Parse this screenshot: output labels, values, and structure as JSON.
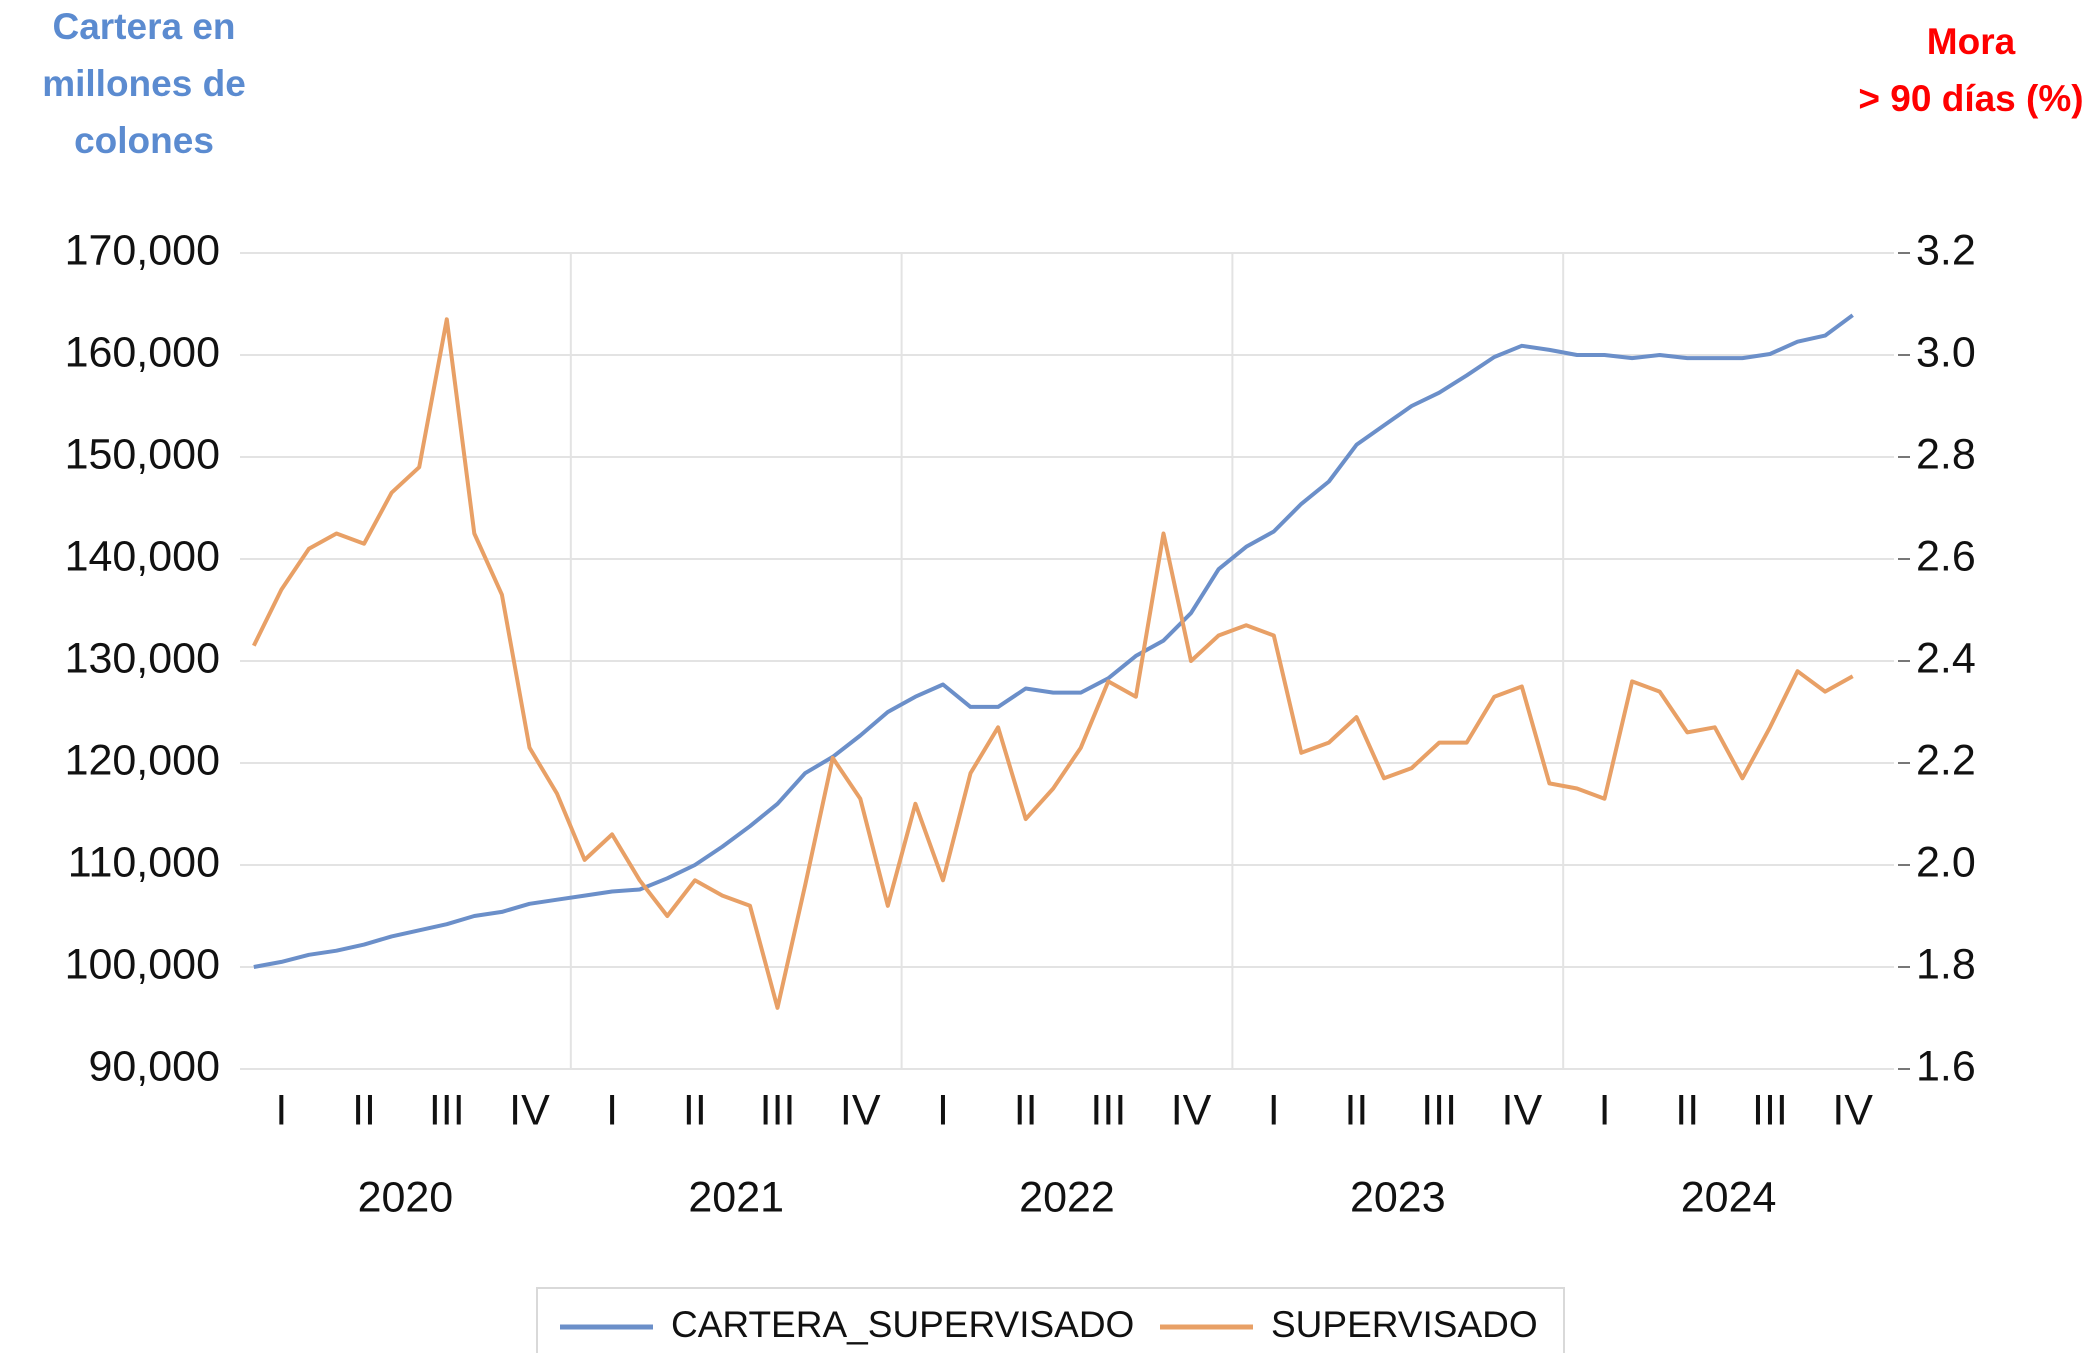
{
  "chart_data": {
    "type": "line",
    "y_axis_title": [
      "Cartera en",
      "millones de",
      "colones"
    ],
    "y2_axis_title": [
      "Mora",
      "> 90 días (%)"
    ],
    "categories": [
      null,
      null,
      null,
      null,
      null,
      null,
      null,
      null,
      null,
      null,
      null,
      null,
      null,
      null,
      null,
      null,
      null,
      null,
      null,
      null,
      null,
      null,
      null,
      null,
      null,
      null,
      null,
      null,
      null,
      null,
      null,
      null,
      null,
      null,
      null,
      null,
      null,
      null,
      null,
      null,
      null,
      null,
      null,
      null,
      null,
      null,
      null,
      null,
      null,
      null,
      null,
      null,
      null,
      null,
      null,
      null,
      null,
      null,
      null,
      null
    ],
    "quarter_labels": [
      "I",
      "II",
      "III",
      "IV",
      "I",
      "II",
      "III",
      "IV",
      "I",
      "II",
      "III",
      "IV",
      "I",
      "II",
      "III",
      "IV",
      "I",
      "II",
      "III",
      "IV"
    ],
    "year_labels": [
      "2020",
      "2021",
      "2022",
      "2023",
      "2024"
    ],
    "series": [
      {
        "name": "CARTERA_SUPERVISADO",
        "color": "#6b8fc9",
        "axis": "y",
        "values": [
          100000,
          100500,
          101200,
          101600,
          102200,
          103000,
          103600,
          104200,
          105000,
          105400,
          106200,
          106600,
          107000,
          107400,
          107600,
          108700,
          110000,
          111800,
          113800,
          116000,
          119000,
          120600,
          122700,
          125000,
          126500,
          127700,
          125500,
          125500,
          127300,
          126900,
          126900,
          128300,
          130500,
          132000,
          134700,
          139000,
          141200,
          142700,
          145400,
          147600,
          151200,
          153100,
          155000,
          156300,
          158000,
          159800,
          160900,
          160500,
          160000,
          160000,
          159700,
          160000,
          159700,
          159700,
          159700,
          160100,
          161300,
          161900,
          163900,
          null
        ]
      },
      {
        "name": "SUPERVISADO",
        "color": "#e8a066",
        "axis": "y2",
        "values": [
          2.43,
          2.54,
          2.62,
          2.65,
          2.63,
          2.73,
          2.78,
          3.07,
          2.65,
          2.53,
          2.23,
          2.14,
          2.01,
          2.06,
          1.97,
          1.9,
          1.97,
          1.94,
          1.92,
          1.72,
          1.96,
          2.21,
          2.13,
          1.92,
          2.12,
          1.97,
          2.18,
          2.27,
          2.09,
          2.15,
          2.23,
          2.36,
          2.33,
          2.65,
          2.4,
          2.45,
          2.47,
          2.45,
          2.22,
          2.24,
          2.29,
          2.17,
          2.19,
          2.24,
          2.24,
          2.33,
          2.35,
          2.16,
          2.15,
          2.13,
          2.36,
          2.34,
          2.26,
          2.27,
          2.17,
          2.27,
          2.38,
          2.34,
          2.37,
          null
        ]
      }
    ],
    "ylim": [
      90000,
      170000
    ],
    "yticks": [
      {
        "value": 90000,
        "label": "90,000"
      },
      {
        "value": 100000,
        "label": "100,000"
      },
      {
        "value": 110000,
        "label": "110,000"
      },
      {
        "value": 120000,
        "label": "120,000"
      },
      {
        "value": 130000,
        "label": "130,000"
      },
      {
        "value": 140000,
        "label": "140,000"
      },
      {
        "value": 150000,
        "label": "150,000"
      },
      {
        "value": 160000,
        "label": "160,000"
      },
      {
        "value": 170000,
        "label": "170,000"
      }
    ],
    "y2lim": [
      1.6,
      3.2
    ],
    "y2ticks": [
      1.6,
      1.8,
      {
        "value": 2.0,
        "label": "2.0"
      },
      2.2,
      2.4,
      2.6,
      2.8,
      {
        "value": 3.0,
        "label": "3.0"
      },
      3.2
    ],
    "grid": true,
    "legend": "bottom"
  }
}
